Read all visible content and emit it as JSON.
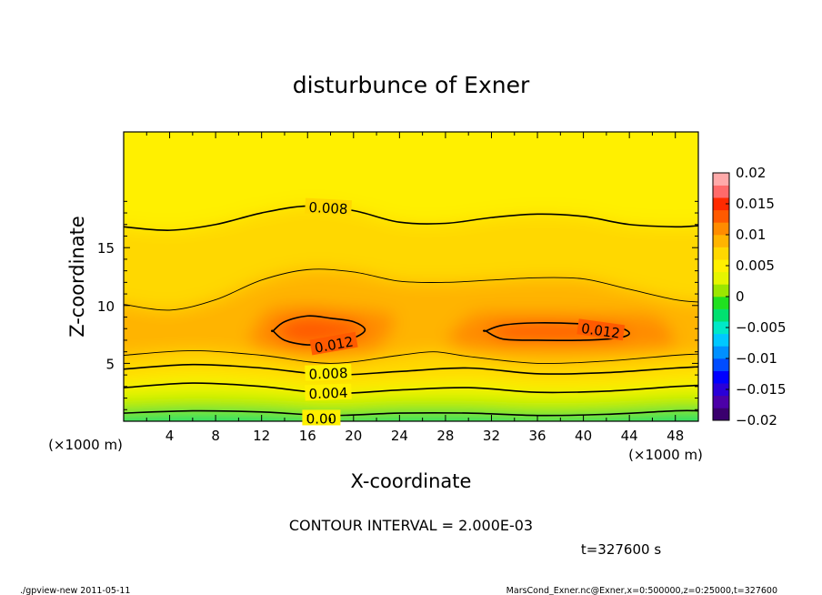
{
  "chart_data": {
    "type": "heatmap",
    "title": "disturbunce of Exner",
    "xlabel": "X-coordinate",
    "ylabel": "Z-coordinate",
    "xunit_left": "(×1000 m)",
    "xunit_right": "(×1000 m)",
    "xlim": [
      0,
      50
    ],
    "ylim": [
      0,
      25
    ],
    "xticks": [
      4,
      8,
      12,
      16,
      20,
      24,
      28,
      32,
      36,
      40,
      44,
      48
    ],
    "xtick_labels": [
      "4",
      "8",
      "12",
      "16",
      "20",
      "24",
      "28",
      "32",
      "36",
      "40",
      "44",
      "48"
    ],
    "yticks": [
      5,
      10,
      15
    ],
    "ytick_labels": [
      "5",
      "10",
      "15"
    ],
    "colorbar": {
      "min": -0.02,
      "max": 0.02,
      "step": 0.0025,
      "labels": [
        "0.02",
        "0.015",
        "0.01",
        "0.005",
        "0",
        "−0.005",
        "−0.01",
        "−0.015",
        "−0.02"
      ],
      "colors": [
        "#3a006e",
        "#4c00a8",
        "#2a00d8",
        "#0000ff",
        "#004cff",
        "#0090ff",
        "#00c8ff",
        "#00e8c8",
        "#00e070",
        "#20e020",
        "#9be600",
        "#e6f500",
        "#fff000",
        "#ffd800",
        "#ffb400",
        "#ff8c00",
        "#ff5a00",
        "#ff2a00",
        "#ff6a6a",
        "#ffaaaa"
      ]
    },
    "contour_labels": [
      "0.008",
      "0.012",
      "0.012",
      "0.008",
      "0.004",
      "0.00"
    ],
    "contour_interval_text": "CONTOUR INTERVAL = 2.000E-03",
    "time_text": "t=327600 s",
    "footer_left": "./gpview-new 2011-05-11",
    "footer_right": "MarsCond_Exner.nc@Exner,x=0:500000,z=0:25000,t=327600",
    "series": [
      {
        "name": "0.000 contour",
        "x": [
          0,
          6,
          12,
          18,
          24,
          30,
          36,
          42,
          48,
          50
        ],
        "z": [
          0.7,
          0.9,
          0.8,
          0.5,
          0.7,
          0.7,
          0.5,
          0.6,
          0.9,
          0.9
        ]
      },
      {
        "name": "0.004 contour",
        "x": [
          0,
          6,
          12,
          18,
          24,
          30,
          36,
          42,
          48,
          50
        ],
        "z": [
          2.9,
          3.3,
          3.0,
          2.4,
          2.7,
          2.9,
          2.5,
          2.6,
          3.0,
          3.1
        ]
      },
      {
        "name": "0.008 contour",
        "x": [
          0,
          6,
          12,
          18,
          24,
          30,
          36,
          42,
          48,
          50
        ],
        "z": [
          4.5,
          4.9,
          4.6,
          4.0,
          4.3,
          4.6,
          4.1,
          4.2,
          4.6,
          4.7
        ]
      },
      {
        "name": "0.010 contour",
        "x": [
          0,
          6,
          12,
          18,
          24,
          27,
          30,
          36,
          42,
          48,
          50
        ],
        "z": [
          5.7,
          6.1,
          5.7,
          5.0,
          5.7,
          6.0,
          5.6,
          5.0,
          5.2,
          5.7,
          5.8
        ]
      },
      {
        "name": "0.010 contour (upper)",
        "x": [
          0,
          4,
          8,
          12,
          16,
          20,
          24,
          28,
          32,
          36,
          40,
          44,
          48,
          50
        ],
        "z": [
          10.1,
          9.6,
          10.5,
          12.2,
          13.1,
          12.9,
          12.1,
          12.0,
          12.2,
          12.4,
          12.3,
          11.4,
          10.5,
          10.3
        ]
      },
      {
        "name": "0.008 contour (upper)",
        "x": [
          0,
          4,
          8,
          12,
          16,
          20,
          24,
          28,
          32,
          36,
          40,
          44,
          48,
          50
        ],
        "z": [
          16.8,
          16.5,
          17.0,
          18.0,
          18.6,
          18.2,
          17.2,
          17.1,
          17.6,
          17.9,
          17.7,
          17.0,
          16.8,
          16.9
        ]
      },
      {
        "name": "0.012 contour (left cell)",
        "x": [
          13,
          14,
          16,
          18,
          20,
          21,
          20,
          18,
          16,
          14,
          13
        ],
        "z": [
          7.8,
          8.6,
          9.1,
          8.9,
          8.6,
          7.9,
          7.2,
          6.8,
          6.6,
          7.0,
          7.8
        ]
      },
      {
        "name": "0.012 contour (right cell)",
        "x": [
          31.5,
          33,
          36,
          40,
          43,
          44,
          43,
          40,
          36,
          33,
          31.5
        ],
        "z": [
          7.8,
          8.3,
          8.5,
          8.4,
          8.1,
          7.6,
          7.2,
          7.0,
          7.0,
          7.1,
          7.8
        ]
      }
    ]
  }
}
